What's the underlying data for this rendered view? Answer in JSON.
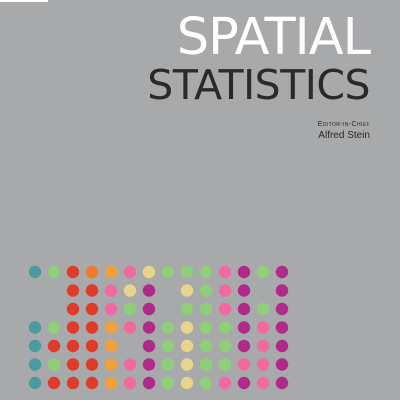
{
  "cover": {
    "title_line1": "SPATIAL",
    "title_line2": "STATISTICS",
    "editor_role": "Editor-in-Chief",
    "editor_name": "Alfred Stein"
  },
  "colors": {
    "background": "#a8a9ab",
    "title_light": "#ffffff",
    "title_dark": "#2a2a2a"
  },
  "dot_pattern": {
    "rows": [
      "tgroapwgggpmgm",
      "..rrpwm.wgpm.m",
      "..rrpgm.ggpmgm",
      "tgrrapmgwggmpm",
      "trrra.mgwggmpm",
      "tgrrapmgwggppm",
      "trrrapmgwgpmpm"
    ],
    "palette": {
      "t": "#4a9aa0",
      "g": "#8fcf7a",
      "r": "#e03a2a",
      "o": "#ef7a2a",
      "a": "#f2a03a",
      "p": "#f06aa0",
      "m": "#b02a8a",
      "w": "#e8d48a"
    }
  }
}
